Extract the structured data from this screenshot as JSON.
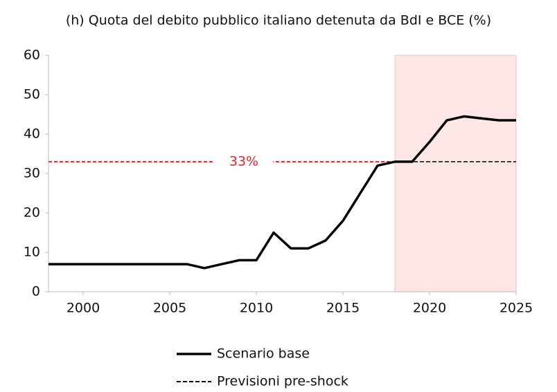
{
  "chart_data": {
    "type": "line",
    "title": "(h) Quota del debito pubblico italiano detenuta da BdI e BCE (%)",
    "x": [
      1998,
      1999,
      2000,
      2001,
      2002,
      2003,
      2004,
      2005,
      2006,
      2007,
      2008,
      2009,
      2010,
      2011,
      2012,
      2013,
      2014,
      2015,
      2016,
      2017,
      2018,
      2019,
      2020,
      2021,
      2022,
      2023,
      2024,
      2025
    ],
    "series": [
      {
        "name": "Scenario base",
        "color": "#000000",
        "dash": false,
        "values": [
          7,
          7,
          7,
          7,
          7,
          7,
          7,
          7,
          7,
          6,
          7,
          8,
          8,
          15,
          11,
          11,
          13,
          18,
          25,
          32,
          33,
          33,
          38,
          43.5,
          44.5,
          44,
          43.5,
          43.5
        ]
      },
      {
        "name": "Previsioni pre-shock",
        "color": "#000000",
        "dash": true,
        "values": [
          null,
          null,
          null,
          null,
          null,
          null,
          null,
          null,
          null,
          null,
          null,
          null,
          null,
          null,
          null,
          null,
          null,
          null,
          null,
          null,
          33,
          33,
          33,
          33,
          33,
          33,
          33,
          33
        ]
      }
    ],
    "xlim": [
      1998,
      2025
    ],
    "xticks": [
      2000,
      2005,
      2010,
      2015,
      2020,
      2025
    ],
    "ylim": [
      0,
      60
    ],
    "yticks": [
      0,
      10,
      20,
      30,
      40,
      50,
      60
    ],
    "shade": [
      2018,
      2025
    ],
    "shade_color": "#fde6e6",
    "reference_line": {
      "value": 33,
      "label": "33%",
      "color": "#d9282f"
    },
    "grid": false,
    "legend": "bottom"
  }
}
